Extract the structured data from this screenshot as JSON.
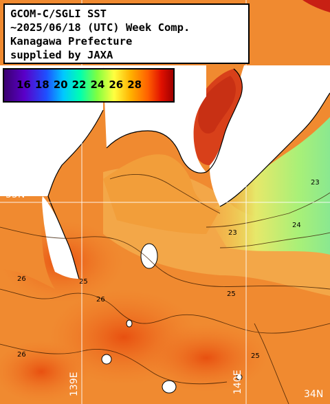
{
  "title": {
    "lines": [
      "GCOM-C/SGLI SST",
      "~2025/06/18 (UTC) Week Comp.",
      "Kanagawa Prefecture",
      "supplied by JAXA"
    ]
  },
  "legend": {
    "ticks": [
      "16",
      "18",
      "20",
      "22",
      "24",
      "26",
      "28"
    ],
    "colors": [
      "#3a0070",
      "#5a00c8",
      "#1e50ff",
      "#00c8ff",
      "#00ffb0",
      "#80ff40",
      "#ffff40",
      "#ffb000",
      "#ff6000",
      "#e01000",
      "#a00000"
    ]
  },
  "coords": {
    "lat35": "35N",
    "lon139": "139E",
    "lon140": "140E",
    "lat34": "34N"
  },
  "contour_labels": [
    {
      "text": "26",
      "lon": 0,
      "lat": 0
    },
    {
      "text": "25",
      "lon": 0,
      "lat": 0
    },
    {
      "text": "23",
      "lon": 0,
      "lat": 0
    },
    {
      "text": "24",
      "lon": 0,
      "lat": 0
    }
  ]
}
